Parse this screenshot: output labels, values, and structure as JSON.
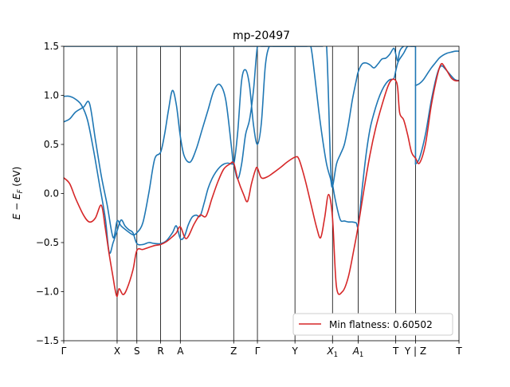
{
  "chart_data": {
    "type": "line",
    "title": "mp-20497",
    "ylabel": "E − E_F (eV)",
    "ylabel_parts": {
      "main": "E − E",
      "sub": "F",
      "unit": " (eV)"
    },
    "ylim": [
      -1.5,
      1.5
    ],
    "yticks": [
      {
        "value": 1.5,
        "label": "1.5"
      },
      {
        "value": 1.0,
        "label": "1.0"
      },
      {
        "value": 0.5,
        "label": "0.5"
      },
      {
        "value": 0.0,
        "label": "0.0"
      },
      {
        "value": -0.5,
        "label": "−0.5"
      },
      {
        "value": -1.0,
        "label": "−1.0"
      },
      {
        "value": -1.5,
        "label": "−1.5"
      }
    ],
    "xlim": [
      0,
      20
    ],
    "kpath": [
      {
        "x": 0.0,
        "label": "Γ"
      },
      {
        "x": 2.7,
        "label": "X"
      },
      {
        "x": 3.7,
        "label": "S"
      },
      {
        "x": 4.9,
        "label": "R"
      },
      {
        "x": 5.9,
        "label": "A"
      },
      {
        "x": 8.6,
        "label": "Z"
      },
      {
        "x": 9.8,
        "label": "Γ"
      },
      {
        "x": 11.7,
        "label": "Y"
      },
      {
        "x": 13.6,
        "label": "X",
        "sub": "1"
      },
      {
        "x": 14.9,
        "label": "A",
        "sub": "1"
      },
      {
        "x": 16.8,
        "label": "T"
      },
      {
        "x": 17.8,
        "label": "Y | Z"
      },
      {
        "x": 20.0,
        "label": "T"
      }
    ],
    "legend": {
      "location": "lower-right",
      "entries": [
        "Min flatness: 0.60502"
      ]
    },
    "colors": {
      "band": "#1f77b4",
      "flat": "#d62728"
    },
    "series": [
      {
        "name": "Min flatness: 0.60502",
        "role": "flat",
        "x": [
          0.0,
          0.3,
          0.6,
          1.0,
          1.3,
          1.6,
          1.9,
          2.1,
          2.3,
          2.5,
          2.6,
          2.7,
          2.8,
          3.0,
          3.2,
          3.5,
          3.7,
          4.0,
          4.3,
          4.6,
          4.9,
          5.2,
          5.5,
          5.7,
          5.9,
          6.2,
          6.6,
          6.9,
          7.2,
          7.5,
          7.8,
          8.1,
          8.4,
          8.6,
          8.8,
          9.1,
          9.3,
          9.5,
          9.7,
          9.8,
          10.0,
          10.3,
          10.6,
          11.0,
          11.3,
          11.7,
          11.9,
          12.2,
          12.5,
          12.8,
          13.0,
          13.2,
          13.4,
          13.6,
          13.8,
          14.1,
          14.4,
          14.7,
          14.9,
          15.2,
          15.5,
          15.8,
          16.1,
          16.4,
          16.6,
          16.8,
          16.9,
          17.0,
          17.2,
          17.4,
          17.6,
          17.8,
          18.0,
          18.3,
          18.6,
          18.9,
          19.1,
          19.3,
          19.6,
          19.8,
          20.0
        ],
        "y": [
          0.16,
          0.1,
          -0.05,
          -0.22,
          -0.29,
          -0.25,
          -0.12,
          -0.35,
          -0.62,
          -0.86,
          -0.98,
          -1.05,
          -0.97,
          -1.03,
          -0.97,
          -0.78,
          -0.58,
          -0.57,
          -0.55,
          -0.53,
          -0.52,
          -0.49,
          -0.44,
          -0.4,
          -0.34,
          -0.46,
          -0.31,
          -0.22,
          -0.23,
          -0.05,
          0.12,
          0.25,
          0.3,
          0.31,
          0.15,
          -0.01,
          -0.08,
          0.1,
          0.24,
          0.26,
          0.16,
          0.17,
          0.21,
          0.27,
          0.32,
          0.37,
          0.35,
          0.15,
          -0.1,
          -0.35,
          -0.45,
          -0.25,
          -0.01,
          -0.25,
          -0.95,
          -1.0,
          -0.85,
          -0.55,
          -0.33,
          0.05,
          0.4,
          0.68,
          0.9,
          1.09,
          1.16,
          1.15,
          1.07,
          0.82,
          0.75,
          0.6,
          0.42,
          0.36,
          0.31,
          0.5,
          0.9,
          1.2,
          1.32,
          1.28,
          1.18,
          1.15,
          1.15
        ]
      },
      {
        "role": "band",
        "x": [
          0.0,
          0.3,
          0.6,
          1.0,
          1.3,
          1.6,
          1.9,
          2.2,
          2.5,
          2.7,
          2.9,
          3.2,
          3.5,
          3.7,
          4.0,
          4.3,
          4.6,
          4.9,
          5.1,
          5.3,
          5.5,
          5.7,
          5.9,
          6.1,
          6.4,
          6.7,
          7.0,
          7.3,
          7.6,
          7.9,
          8.2,
          8.5,
          8.6,
          8.8,
          9.0,
          9.2,
          9.4,
          9.6,
          9.8,
          10.0,
          10.2,
          10.4,
          10.6,
          10.8,
          11.0,
          11.2,
          11.4,
          11.6,
          11.7
        ],
        "y": [
          0.73,
          0.76,
          0.83,
          0.88,
          0.92,
          0.55,
          0.18,
          -0.12,
          -0.45,
          -0.28,
          -0.33,
          -0.38,
          -0.42,
          -0.4,
          -0.3,
          0.0,
          0.35,
          0.42,
          0.6,
          0.85,
          1.05,
          0.9,
          0.58,
          0.38,
          0.32,
          0.45,
          0.65,
          0.85,
          1.05,
          1.11,
          0.95,
          0.45,
          0.3,
          0.62,
          1.15,
          1.26,
          1.1,
          0.7,
          0.5,
          0.72,
          1.3,
          1.5,
          1.5,
          1.5,
          1.5,
          1.5,
          1.5,
          1.5,
          1.5
        ]
      },
      {
        "role": "band",
        "x": [
          0.0,
          0.3,
          0.6,
          0.9,
          1.2,
          1.5,
          1.8,
          2.1,
          2.3,
          2.5,
          2.7,
          2.9,
          3.1,
          3.3,
          3.5,
          3.7,
          4.0,
          4.3,
          4.6,
          4.9,
          5.2,
          5.5,
          5.7,
          5.9,
          6.1,
          6.3,
          6.5,
          6.7,
          6.9,
          7.1,
          7.3,
          7.5,
          7.7,
          7.9,
          8.1,
          8.3,
          8.5,
          8.6,
          8.8,
          9.0,
          9.2,
          9.4,
          9.6,
          9.8,
          10.0,
          10.2,
          10.4,
          10.6,
          10.8,
          11.0,
          11.2,
          11.4,
          11.6,
          11.7
        ],
        "y": [
          0.99,
          0.99,
          0.96,
          0.9,
          0.75,
          0.45,
          0.1,
          -0.25,
          -0.6,
          -0.5,
          -0.38,
          -0.27,
          -0.33,
          -0.37,
          -0.4,
          -0.51,
          -0.52,
          -0.5,
          -0.51,
          -0.51,
          -0.48,
          -0.4,
          -0.33,
          -0.46,
          -0.44,
          -0.32,
          -0.24,
          -0.22,
          -0.23,
          -0.1,
          0.05,
          0.15,
          0.22,
          0.27,
          0.3,
          0.31,
          0.3,
          0.3,
          0.15,
          0.3,
          0.6,
          0.75,
          1.05,
          1.5,
          1.5,
          1.5,
          1.5,
          1.5,
          1.5,
          1.5,
          1.5,
          1.5,
          1.5,
          1.5
        ]
      },
      {
        "role": "band",
        "x": [
          0.0,
          0.3,
          0.6,
          0.9,
          1.2,
          1.5,
          1.8,
          2.0,
          2.2,
          2.4,
          2.6,
          2.7,
          2.9,
          3.1,
          3.3,
          3.5,
          3.7,
          3.9,
          4.2,
          4.5,
          4.8,
          4.9,
          5.1,
          5.3,
          5.5,
          5.7,
          5.9,
          6.2,
          6.5,
          6.8,
          7.1,
          7.4,
          7.7,
          8.0,
          8.3,
          8.6,
          8.8,
          9.0,
          9.2,
          9.4,
          9.6,
          9.8,
          10.0,
          10.2,
          10.4,
          10.6,
          10.8,
          11.0,
          11.2,
          11.4,
          11.6,
          11.7
        ],
        "y": [
          1.5,
          1.5,
          1.5,
          1.5,
          1.5,
          1.5,
          1.5,
          1.5,
          1.5,
          1.5,
          1.5,
          1.5,
          1.5,
          1.5,
          1.5,
          1.5,
          1.5,
          1.5,
          1.5,
          1.5,
          1.5,
          1.5,
          1.5,
          1.5,
          1.5,
          1.5,
          1.5,
          1.5,
          1.5,
          1.5,
          1.5,
          1.5,
          1.5,
          1.5,
          1.5,
          1.5,
          1.5,
          1.5,
          1.5,
          1.5,
          1.5,
          1.5,
          1.5,
          1.5,
          1.5,
          1.5,
          1.5,
          1.5,
          1.5,
          1.5,
          1.5,
          1.5
        ]
      },
      {
        "role": "band",
        "x": [
          11.7,
          11.9,
          12.1,
          12.3,
          12.5,
          12.7,
          12.9,
          13.1,
          13.3,
          13.5,
          13.6,
          13.8,
          14.0,
          14.2,
          14.4,
          14.6,
          14.8,
          14.9,
          15.1,
          15.3,
          15.5,
          15.7,
          15.9,
          16.1,
          16.3,
          16.5,
          16.7,
          16.8,
          16.9,
          17.0,
          17.2,
          17.4,
          17.6,
          17.8
        ],
        "y": [
          1.5,
          1.5,
          1.5,
          1.5,
          1.5,
          1.2,
          0.85,
          0.55,
          0.3,
          0.15,
          0.07,
          0.3,
          0.4,
          0.5,
          0.7,
          0.95,
          1.15,
          1.24,
          1.32,
          1.33,
          1.31,
          1.28,
          1.32,
          1.37,
          1.38,
          1.42,
          1.48,
          1.42,
          1.35,
          1.45,
          1.5,
          1.5,
          1.5,
          1.5
        ]
      },
      {
        "role": "band",
        "x": [
          11.7,
          11.9,
          12.1,
          12.3,
          12.5,
          12.7,
          12.9,
          13.1,
          13.3,
          13.5,
          13.6,
          13.8,
          14.0,
          14.2,
          14.4,
          14.6,
          14.8,
          14.9,
          15.1,
          15.3,
          15.5,
          15.7,
          15.9,
          16.1,
          16.3,
          16.5,
          16.7,
          16.8,
          16.9,
          17.0,
          17.2,
          17.4,
          17.6,
          17.8
        ],
        "y": [
          1.5,
          1.5,
          1.5,
          1.5,
          1.5,
          1.5,
          1.5,
          1.5,
          1.5,
          0.3,
          0.1,
          -0.12,
          -0.27,
          -0.28,
          -0.29,
          -0.29,
          -0.3,
          -0.32,
          0.05,
          0.4,
          0.66,
          0.82,
          0.95,
          1.05,
          1.12,
          1.16,
          1.17,
          1.25,
          1.33,
          1.37,
          1.43,
          1.5,
          1.5,
          1.5
        ]
      },
      {
        "role": "band",
        "x": [
          17.8,
          18.0,
          18.2,
          18.4,
          18.6,
          18.8,
          19.0,
          19.2,
          19.4,
          19.6,
          19.8,
          20.0
        ],
        "y": [
          1.1,
          1.12,
          1.16,
          1.22,
          1.28,
          1.33,
          1.38,
          1.41,
          1.43,
          1.44,
          1.45,
          1.45
        ]
      },
      {
        "role": "band",
        "x": [
          17.8,
          18.0,
          18.3,
          18.6,
          18.9,
          19.1,
          19.3,
          19.6,
          19.8,
          20.0
        ],
        "y": [
          0.3,
          0.36,
          0.6,
          0.95,
          1.22,
          1.3,
          1.27,
          1.2,
          1.16,
          1.15
        ]
      },
      {
        "role": "band",
        "x": [
          17.8,
          17.8
        ],
        "y": [
          0.3,
          1.5
        ]
      }
    ]
  }
}
